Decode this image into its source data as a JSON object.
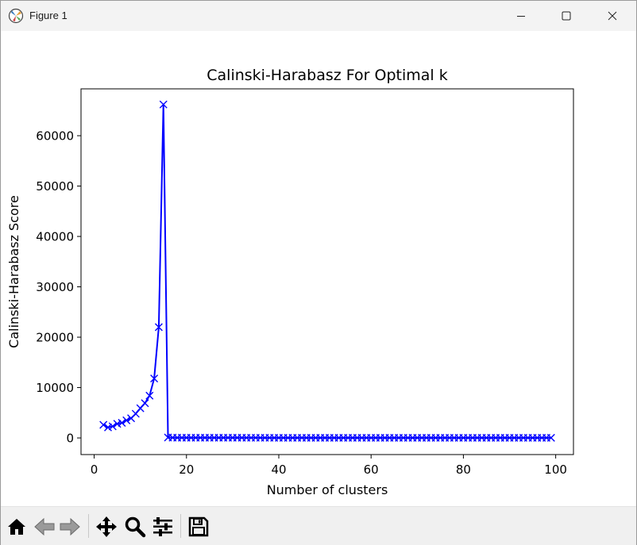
{
  "window": {
    "title": "Figure 1",
    "icons": [
      "app-icon",
      "minimize-icon",
      "maximize-icon",
      "close-icon"
    ]
  },
  "toolbar": {
    "buttons": [
      {
        "name": "home-button",
        "icon": "home-icon"
      },
      {
        "name": "back-button",
        "icon": "arrow-left-icon"
      },
      {
        "name": "forward-button",
        "icon": "arrow-right-icon"
      },
      {
        "name": "pan-button",
        "icon": "move-icon"
      },
      {
        "name": "zoom-button",
        "icon": "magnifier-icon"
      },
      {
        "name": "configure-subplots-button",
        "icon": "sliders-icon"
      },
      {
        "name": "save-button",
        "icon": "floppy-disk-icon"
      }
    ]
  },
  "chart_data": {
    "type": "line",
    "title": "Calinski-Harabasz For Optimal k",
    "xlabel": "Number of clusters",
    "ylabel": "Calinski-Harabasz Score",
    "xlim": [
      -2.85,
      103.85
    ],
    "ylim": [
      -3300,
      69300
    ],
    "xticks": [
      0,
      20,
      40,
      60,
      80,
      100
    ],
    "yticks": [
      0,
      10000,
      20000,
      30000,
      40000,
      50000,
      60000
    ],
    "grid": false,
    "marker": "x",
    "color": "#0000ff",
    "series": [
      {
        "x": [
          2,
          3,
          4,
          5,
          6,
          7,
          8,
          9,
          10,
          11,
          12,
          13,
          14,
          15,
          16,
          17,
          18,
          19,
          20,
          21,
          22,
          23,
          24,
          25,
          26,
          27,
          28,
          29,
          30,
          31,
          32,
          33,
          34,
          35,
          36,
          37,
          38,
          39,
          40,
          41,
          42,
          43,
          44,
          45,
          46,
          47,
          48,
          49,
          50,
          51,
          52,
          53,
          54,
          55,
          56,
          57,
          58,
          59,
          60,
          61,
          62,
          63,
          64,
          65,
          66,
          67,
          68,
          69,
          70,
          71,
          72,
          73,
          74,
          75,
          76,
          77,
          78,
          79,
          80,
          81,
          82,
          83,
          84,
          85,
          86,
          87,
          88,
          89,
          90,
          91,
          92,
          93,
          94,
          95,
          96,
          97,
          98,
          99
        ],
        "y": [
          2600,
          2100,
          2300,
          2800,
          3000,
          3500,
          3900,
          4800,
          5900,
          6900,
          8400,
          11800,
          22000,
          66200,
          80,
          60,
          55,
          50,
          48,
          46,
          45,
          44,
          43,
          42,
          41,
          40,
          40,
          39,
          39,
          38,
          38,
          37,
          37,
          37,
          36,
          36,
          36,
          35,
          35,
          35,
          35,
          34,
          34,
          34,
          34,
          33,
          33,
          33,
          33,
          33,
          32,
          32,
          32,
          32,
          32,
          31,
          31,
          31,
          31,
          31,
          31,
          30,
          30,
          30,
          30,
          30,
          30,
          29,
          29,
          29,
          29,
          29,
          29,
          29,
          28,
          28,
          28,
          28,
          28,
          28,
          28,
          28,
          27,
          27,
          27,
          27,
          27,
          27,
          27,
          27,
          27,
          26,
          26,
          26,
          26,
          26,
          26,
          26
        ]
      }
    ]
  }
}
